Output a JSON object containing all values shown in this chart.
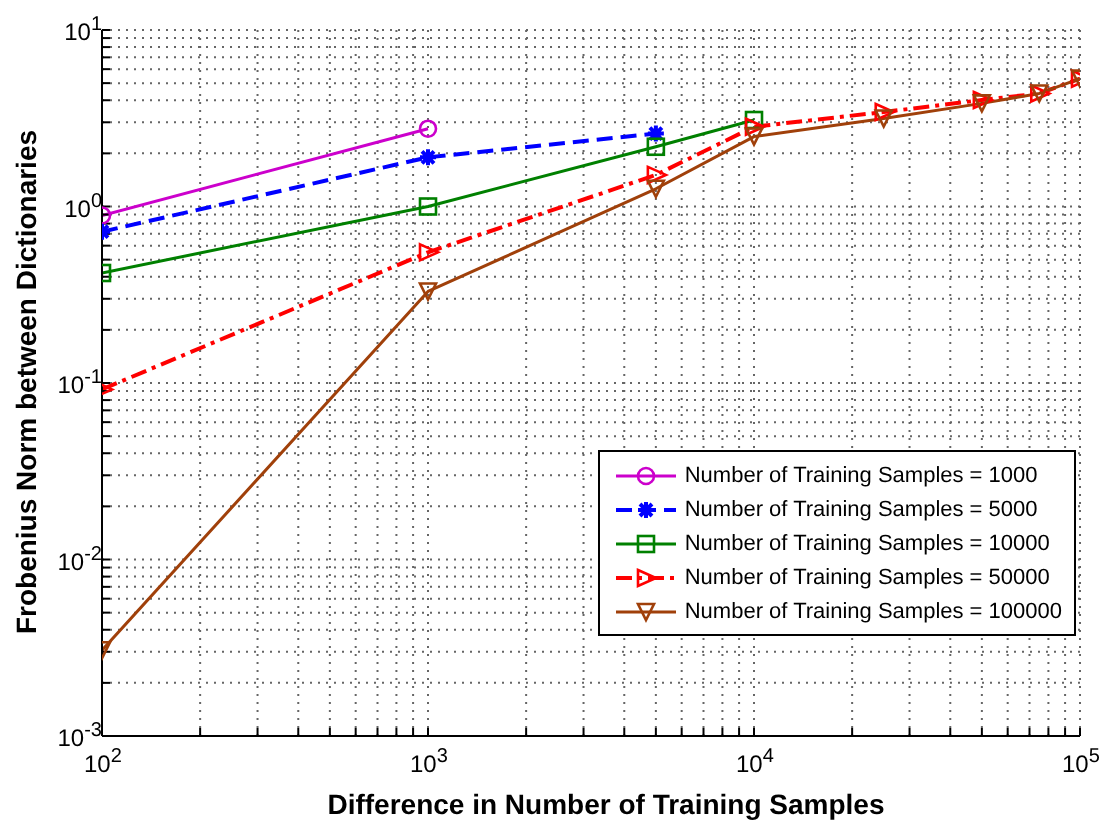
{
  "chart_data": {
    "type": "line",
    "xlabel": "Difference in Number of Training Samples",
    "ylabel": "Frobenius Norm between Dictionaries",
    "log": "xy",
    "grid": true,
    "legend": "bottom right",
    "xlim": [
      100,
      100000
    ],
    "ylim": [
      0.001,
      10
    ],
    "xticks": [
      {
        "value": 100,
        "label": "10$^{2}$"
      },
      {
        "value": 200,
        "label": null
      },
      {
        "value": 300,
        "label": null
      },
      {
        "value": 400,
        "label": null
      },
      {
        "value": 500,
        "label": null
      },
      {
        "value": 600,
        "label": null
      },
      {
        "value": 700,
        "label": null
      },
      {
        "value": 800,
        "label": null
      },
      {
        "value": 900,
        "label": null
      },
      {
        "value": 1000,
        "label": "10$^{3}$"
      },
      {
        "value": 2000,
        "label": null
      },
      {
        "value": 3000,
        "label": null
      },
      {
        "value": 4000,
        "label": null
      },
      {
        "value": 5000,
        "label": null
      },
      {
        "value": 6000,
        "label": null
      },
      {
        "value": 7000,
        "label": null
      },
      {
        "value": 8000,
        "label": null
      },
      {
        "value": 9000,
        "label": null
      },
      {
        "value": 10000,
        "label": "10$^{4}$"
      },
      {
        "value": 20000,
        "label": null
      },
      {
        "value": 30000,
        "label": null
      },
      {
        "value": 40000,
        "label": null
      },
      {
        "value": 50000,
        "label": null
      },
      {
        "value": 60000,
        "label": null
      },
      {
        "value": 70000,
        "label": null
      },
      {
        "value": 80000,
        "label": null
      },
      {
        "value": 90000,
        "label": null
      },
      {
        "value": 100000,
        "label": "10$^{5}$"
      }
    ],
    "yticks": [
      {
        "value": 0.001,
        "label": "10$^{-3}$"
      },
      {
        "value": 0.002,
        "label": null
      },
      {
        "value": 0.003,
        "label": null
      },
      {
        "value": 0.004,
        "label": null
      },
      {
        "value": 0.005,
        "label": null
      },
      {
        "value": 0.006,
        "label": null
      },
      {
        "value": 0.007,
        "label": null
      },
      {
        "value": 0.008,
        "label": null
      },
      {
        "value": 0.009,
        "label": null
      },
      {
        "value": 0.01,
        "label": "10$^{-2}$"
      },
      {
        "value": 0.02,
        "label": null
      },
      {
        "value": 0.03,
        "label": null
      },
      {
        "value": 0.04,
        "label": null
      },
      {
        "value": 0.05,
        "label": null
      },
      {
        "value": 0.06,
        "label": null
      },
      {
        "value": 0.07,
        "label": null
      },
      {
        "value": 0.08,
        "label": null
      },
      {
        "value": 0.09,
        "label": null
      },
      {
        "value": 0.1,
        "label": "10$^{-1}$"
      },
      {
        "value": 0.2,
        "label": null
      },
      {
        "value": 0.3,
        "label": null
      },
      {
        "value": 0.4,
        "label": null
      },
      {
        "value": 0.5,
        "label": null
      },
      {
        "value": 0.6,
        "label": null
      },
      {
        "value": 0.7,
        "label": null
      },
      {
        "value": 0.8,
        "label": null
      },
      {
        "value": 0.9,
        "label": null
      },
      {
        "value": 1,
        "label": "10$^{0}$"
      },
      {
        "value": 2,
        "label": null
      },
      {
        "value": 3,
        "label": null
      },
      {
        "value": 4,
        "label": null
      },
      {
        "value": 5,
        "label": null
      },
      {
        "value": 6,
        "label": null
      },
      {
        "value": 7,
        "label": null
      },
      {
        "value": 8,
        "label": null
      },
      {
        "value": 9,
        "label": null
      },
      {
        "value": 10,
        "label": "10$^{1}$"
      }
    ],
    "series": [
      {
        "name": "Number of Training Samples = 1000",
        "color": "#cc00cc",
        "marker": "circle",
        "line_style": "solid",
        "x": [
          100,
          1000
        ],
        "values": [
          0.89,
          2.76
        ]
      },
      {
        "name": "Number of Training Samples = 5000",
        "color": "#0000ff",
        "marker": "cross",
        "line_style": "dashed",
        "x": [
          100,
          1000,
          5000
        ],
        "values": [
          0.72,
          1.9,
          2.59
        ]
      },
      {
        "name": "Number of Training Samples = 10000",
        "color": "#008000",
        "marker": "square",
        "line_style": "solid",
        "x": [
          100,
          1000,
          5000,
          10000
        ],
        "values": [
          0.42,
          1.0,
          2.18,
          3.09
        ]
      },
      {
        "name": "Number of Training Samples = 50000",
        "color": "#ff0000",
        "marker": "triangle-right",
        "line_style": "dashdot",
        "x": [
          100,
          1000,
          5000,
          10000,
          25000,
          50000,
          75000,
          100000
        ],
        "values": [
          0.092,
          0.55,
          1.51,
          2.83,
          3.43,
          4.01,
          4.37,
          5.3
        ]
      },
      {
        "name": "Number of Training Samples = 100000",
        "color": "#a0400a",
        "marker": "triangle-down",
        "line_style": "solid",
        "x": [
          100,
          1000,
          5000,
          10000,
          25000,
          50000,
          75000,
          100000
        ],
        "values": [
          0.00306,
          0.33,
          1.26,
          2.49,
          3.15,
          3.84,
          4.37,
          5.3
        ]
      }
    ]
  }
}
